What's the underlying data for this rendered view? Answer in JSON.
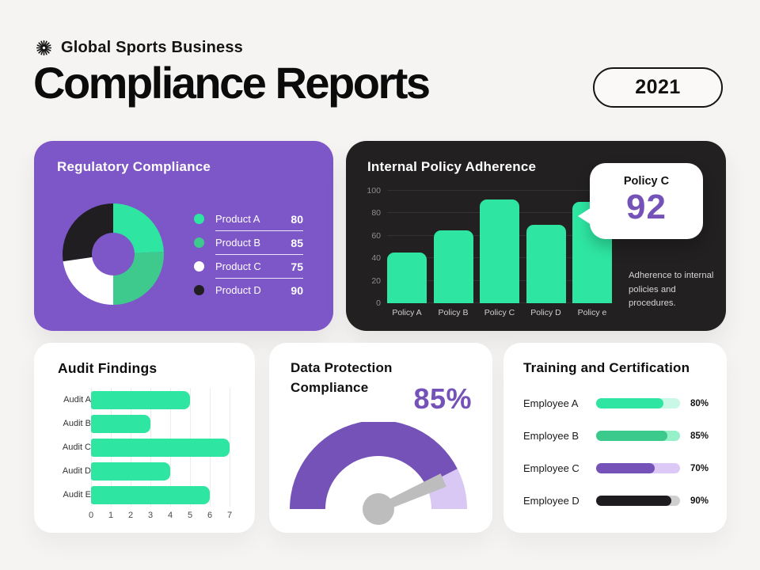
{
  "colors": {
    "background": "#f5f4f2",
    "card_purple": "#7d56c8",
    "card_dark": "#222021",
    "green_bright": "#2ee6a2",
    "green_medium": "#3ec98d",
    "accent_purple": "#7452b8",
    "lavender": "#d9c7f4",
    "needle_gray": "#bdbdbd"
  },
  "header": {
    "logo_icon": "starburst-icon",
    "brand": "Global Sports Business",
    "title": "Compliance Reports",
    "year": "2021"
  },
  "cards": {
    "regulatory": {
      "title": "Regulatory Compliance"
    },
    "policy": {
      "title": "Internal Policy Adherence",
      "callout_label": "Policy C",
      "callout_value": "92",
      "note": "Adherence to internal policies and procedures."
    },
    "audit": {
      "title": "Audit Findings"
    },
    "gauge": {
      "title_line1": "Data Protection",
      "title_line2": "Compliance",
      "value_label": "85%"
    },
    "training": {
      "title": "Training and Certification"
    }
  },
  "chart_data": [
    {
      "type": "pie",
      "donut": true,
      "title": "Regulatory Compliance",
      "labels": [
        "Product A",
        "Product B",
        "Product C",
        "Product D"
      ],
      "values": [
        80,
        85,
        75,
        90
      ],
      "colors": [
        "#2ee6a2",
        "#3ec98d",
        "#ffffff",
        "#211e22"
      ],
      "legend_position": "right"
    },
    {
      "type": "bar",
      "title": "Internal Policy Adherence",
      "categories": [
        "Policy A",
        "Policy B",
        "Policy C",
        "Policy D",
        "Policy e"
      ],
      "values": [
        45,
        65,
        92,
        70,
        90
      ],
      "ylim": [
        0,
        100
      ],
      "yticks": [
        0,
        20,
        40,
        60,
        80,
        100
      ],
      "bar_color": "#2ee6a2",
      "grid": true,
      "annotation": {
        "label": "Policy C",
        "value": 92
      },
      "note": "Adherence to internal policies and procedures."
    },
    {
      "type": "bar",
      "orientation": "horizontal",
      "title": "Audit Findings",
      "categories": [
        "Audit A",
        "Audit B",
        "Audit C",
        "Audit D",
        "Audit E"
      ],
      "values": [
        5,
        3,
        7,
        4,
        6
      ],
      "xlim": [
        0,
        7
      ],
      "xticks": [
        0,
        1,
        2,
        3,
        4,
        5,
        6,
        7
      ],
      "bar_color": "#2ee6a2",
      "grid": true
    },
    {
      "type": "gauge",
      "title": "Data Protection Compliance",
      "value": 85,
      "max": 100,
      "label": "85%",
      "color": "#7452b8",
      "track_color": "#d9c7f4",
      "needle_color": "#bdbdbd"
    },
    {
      "type": "bar",
      "variant": "progress",
      "title": "Training and Certification",
      "categories": [
        "Employee A",
        "Employee B",
        "Employee C",
        "Employee D"
      ],
      "values": [
        80,
        85,
        70,
        90
      ],
      "labels": [
        "80%",
        "85%",
        "70%",
        "90%"
      ],
      "fill_colors": [
        "#2ee6a2",
        "#3cc98c",
        "#7452b8",
        "#1f1c20"
      ],
      "track_colors": [
        "#c9f8e6",
        "#96f0c9",
        "#ddc9f7",
        "#cfcfcf"
      ]
    }
  ]
}
